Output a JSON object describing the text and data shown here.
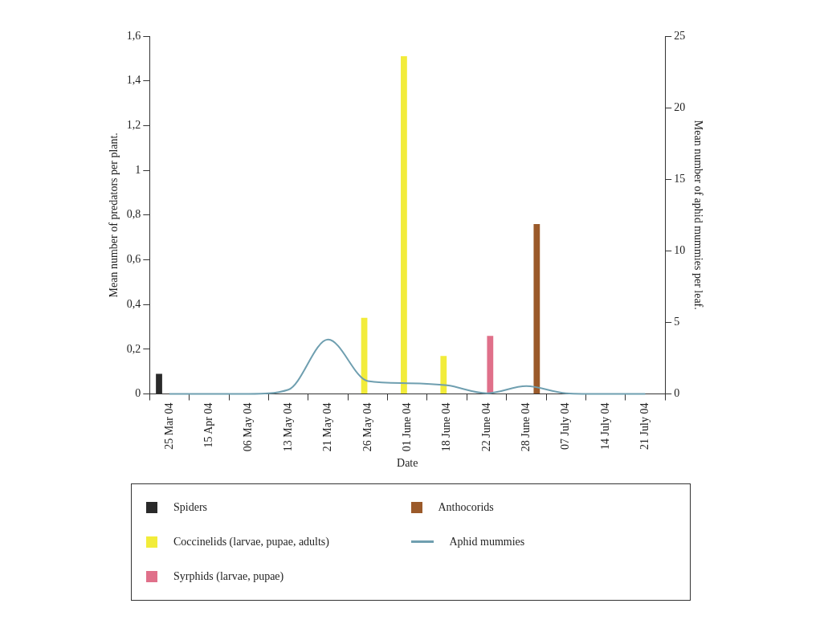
{
  "chart_data": {
    "type": "bar",
    "xlabel": "Date",
    "ylabel": "Mean number of predators per plant.",
    "y2label": "Mean number of aphid mummies per leaf.",
    "categories": [
      "25 Mar 04",
      "15 Apr 04",
      "06 May 04",
      "13 May 04",
      "21 May 04",
      "26 May 04",
      "01 June 04",
      "18 June 04",
      "22 June 04",
      "28 June 04",
      "07 July 04",
      "14 July 04",
      "21 July 04"
    ],
    "series": [
      {
        "name": "Spiders",
        "color": "#2a2a2a",
        "values": [
          0.09,
          0,
          0,
          0,
          0,
          0,
          0,
          0,
          0,
          0,
          0,
          0,
          0
        ]
      },
      {
        "name": "Coccinelids  (larvae, pupae, adults)",
        "color": "#f2ec3a",
        "values": [
          0,
          0,
          0,
          0,
          0,
          0.34,
          1.51,
          0.17,
          0,
          0,
          0,
          0,
          0
        ]
      },
      {
        "name": "Syrphids  (larvae, pupae)",
        "color": "#e0708a",
        "values": [
          0,
          0,
          0,
          0,
          0,
          0,
          0,
          0,
          0.26,
          0,
          0,
          0,
          0
        ]
      },
      {
        "name": "Anthocorids",
        "color": "#9b5a2a",
        "values": [
          0,
          0,
          0,
          0,
          0,
          0,
          0,
          0,
          0,
          0.76,
          0,
          0,
          0
        ]
      },
      {
        "name": "Aphid mummies",
        "type": "line",
        "axis": "y2",
        "color": "#6f9fb0",
        "values": [
          0,
          0,
          0,
          0.3,
          3.8,
          0.9,
          0.75,
          0.6,
          0.05,
          0.55,
          0.05,
          0,
          0
        ]
      }
    ],
    "ylim": [
      0,
      1.6
    ],
    "yticks": [
      {
        "value": 0,
        "label": "0"
      },
      {
        "value": 0.2,
        "label": "0,2"
      },
      {
        "value": 0.4,
        "label": "0,4"
      },
      {
        "value": 0.6,
        "label": "0,6"
      },
      {
        "value": 0.8,
        "label": "0,8"
      },
      {
        "value": 1,
        "label": "1"
      },
      {
        "value": 1.2,
        "label": "1,2"
      },
      {
        "value": 1.4,
        "label": "1,4"
      },
      {
        "value": 1.6,
        "label": "1,6"
      }
    ],
    "y2lim": [
      0,
      25
    ],
    "y2ticks": [
      0,
      5,
      10,
      15,
      20,
      25
    ],
    "legend": "bottom",
    "marker": "none"
  }
}
